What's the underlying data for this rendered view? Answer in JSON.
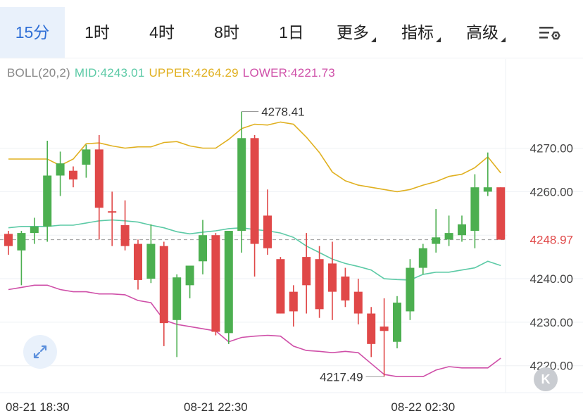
{
  "tabs": [
    {
      "label": "15分",
      "active": true,
      "dropdown": false
    },
    {
      "label": "1时",
      "active": false,
      "dropdown": false
    },
    {
      "label": "4时",
      "active": false,
      "dropdown": false
    },
    {
      "label": "8时",
      "active": false,
      "dropdown": false
    },
    {
      "label": "1日",
      "active": false,
      "dropdown": false
    },
    {
      "label": "更多",
      "active": false,
      "dropdown": true
    },
    {
      "label": "指标",
      "active": false,
      "dropdown": true
    },
    {
      "label": "高级",
      "active": false,
      "dropdown": true
    }
  ],
  "settings_icon": "chart-settings-icon",
  "indicator": {
    "name": "BOLL(20,2)",
    "mid": "MID:4243.01",
    "upper": "UPPER:4264.29",
    "lower": "LOWER:4221.73",
    "colors": {
      "name": "#888888",
      "mid": "#5ccaa6",
      "upper": "#e0b020",
      "lower": "#cf4fa8"
    }
  },
  "chart_data": {
    "type": "candlestick",
    "indicator": "BOLL(20,2)",
    "y_ticks": [
      4220,
      4230,
      4240,
      4250,
      4260,
      4270
    ],
    "y_tick_labels": [
      "4220.00",
      "4230.00",
      "4240.00",
      "4250.00",
      "4260.00",
      "4270.00"
    ],
    "ylim": [
      4214.3,
      4281.4
    ],
    "x_tick_labels": [
      {
        "index": 0,
        "label": "08-21 18:30"
      },
      {
        "index": 16,
        "label": "08-21 22:30"
      },
      {
        "index": 32,
        "label": "08-22 02:30"
      }
    ],
    "current_price": {
      "value": 4248.97,
      "label": "4248.97"
    },
    "max_annotation": {
      "index": 18,
      "value": 4278.41,
      "label": "4278.41"
    },
    "min_annotation": {
      "index": 29,
      "value": 4217.49,
      "label": "4217.49"
    },
    "colors": {
      "up": "#4caf50",
      "down": "#e04848",
      "mid": "#5ccaa6",
      "upper": "#e0b020",
      "lower": "#cf4fa8",
      "price_line": "#999999"
    },
    "candles": [
      {
        "o": 4250.3,
        "h": 4251.0,
        "l": 4245.5,
        "c": 4247.5
      },
      {
        "o": 4246.5,
        "h": 4251.0,
        "l": 4238.5,
        "c": 4250.5
      },
      {
        "o": 4250.5,
        "h": 4254.0,
        "l": 4248.0,
        "c": 4252.0
      },
      {
        "o": 4252.0,
        "h": 4271.7,
        "l": 4248.5,
        "c": 4263.7
      },
      {
        "o": 4263.7,
        "h": 4269.2,
        "l": 4259.0,
        "c": 4266.5
      },
      {
        "o": 4264.8,
        "h": 4265.8,
        "l": 4261.0,
        "c": 4262.8
      },
      {
        "o": 4266.2,
        "h": 4270.8,
        "l": 4263.2,
        "c": 4269.7
      },
      {
        "o": 4269.7,
        "h": 4273.0,
        "l": 4249.0,
        "c": 4256.3
      },
      {
        "o": 4255.5,
        "h": 4260.0,
        "l": 4247.5,
        "c": 4255.3
      },
      {
        "o": 4252.3,
        "h": 4258.0,
        "l": 4246.5,
        "c": 4247.5
      },
      {
        "o": 4248.0,
        "h": 4249.0,
        "l": 4237.5,
        "c": 4239.7
      },
      {
        "o": 4240.0,
        "h": 4252.5,
        "l": 4239.0,
        "c": 4248.0
      },
      {
        "o": 4247.5,
        "h": 4248.5,
        "l": 4224.5,
        "c": 4229.8
      },
      {
        "o": 4230.5,
        "h": 4241.0,
        "l": 4222.0,
        "c": 4240.3
      },
      {
        "o": 4238.5,
        "h": 4243.0,
        "l": 4235.5,
        "c": 4243.0
      },
      {
        "o": 4244.0,
        "h": 4253.5,
        "l": 4241.0,
        "c": 4250.0
      },
      {
        "o": 4250.0,
        "h": 4250.5,
        "l": 4227.0,
        "c": 4227.8
      },
      {
        "o": 4227.5,
        "h": 4250.5,
        "l": 4225.0,
        "c": 4251.0
      },
      {
        "o": 4251.0,
        "h": 4278.4,
        "l": 4246.0,
        "c": 4272.3
      },
      {
        "o": 4272.3,
        "h": 4273.0,
        "l": 4240.5,
        "c": 4248.0
      },
      {
        "o": 4254.5,
        "h": 4260.5,
        "l": 4245.5,
        "c": 4247.0
      },
      {
        "o": 4244.5,
        "h": 4245.0,
        "l": 4232.0,
        "c": 4232.0
      },
      {
        "o": 4237.0,
        "h": 4238.5,
        "l": 4229.0,
        "c": 4232.5
      },
      {
        "o": 4245.0,
        "h": 4250.5,
        "l": 4232.0,
        "c": 4238.5
      },
      {
        "o": 4244.5,
        "h": 4247.5,
        "l": 4231.0,
        "c": 4233.0
      },
      {
        "o": 4243.5,
        "h": 4248.5,
        "l": 4230.5,
        "c": 4237.0
      },
      {
        "o": 4240.5,
        "h": 4242.5,
        "l": 4233.5,
        "c": 4235.0
      },
      {
        "o": 4237.0,
        "h": 4240.0,
        "l": 4229.5,
        "c": 4232.0
      },
      {
        "o": 4232.0,
        "h": 4233.5,
        "l": 4222.0,
        "c": 4225.0
      },
      {
        "o": 4229.0,
        "h": 4235.5,
        "l": 4217.5,
        "c": 4228.0
      },
      {
        "o": 4225.5,
        "h": 4236.0,
        "l": 4224.0,
        "c": 4234.5
      },
      {
        "o": 4232.5,
        "h": 4244.5,
        "l": 4230.5,
        "c": 4242.5
      },
      {
        "o": 4242.5,
        "h": 4248.0,
        "l": 4241.0,
        "c": 4247.0
      },
      {
        "o": 4248.0,
        "h": 4256.0,
        "l": 4246.0,
        "c": 4249.5
      },
      {
        "o": 4249.0,
        "h": 4254.5,
        "l": 4247.5,
        "c": 4250.5
      },
      {
        "o": 4250.0,
        "h": 4254.5,
        "l": 4248.5,
        "c": 4252.5
      },
      {
        "o": 4251.0,
        "h": 4264.0,
        "l": 4247.0,
        "c": 4261.0
      },
      {
        "o": 4260.0,
        "h": 4269.0,
        "l": 4259.0,
        "c": 4261.0
      },
      {
        "o": 4261.0,
        "h": 4261.0,
        "l": 4249.0,
        "c": 4248.97
      }
    ],
    "boll_upper": [
      4267.5,
      4267.5,
      4267.5,
      4267.5,
      4266.0,
      4267.5,
      4271.0,
      4271.2,
      4270.5,
      4270.0,
      4270.3,
      4270.3,
      4271.3,
      4271.5,
      4270.5,
      4270.0,
      4270.0,
      4272.0,
      4274.5,
      4275.5,
      4275.3,
      4276.0,
      4275.5,
      4272.5,
      4269.0,
      4264.5,
      4262.5,
      4261.5,
      4261.0,
      4260.5,
      4260.0,
      4260.5,
      4261.5,
      4262.3,
      4263.5,
      4264.0,
      4265.5,
      4268.0,
      4264.29
    ],
    "boll_mid": [
      4251.7,
      4252.0,
      4252.0,
      4252.0,
      4252.3,
      4252.3,
      4252.8,
      4253.3,
      4253.5,
      4253.3,
      4253.0,
      4252.3,
      4251.7,
      4250.8,
      4250.3,
      4250.7,
      4251.0,
      4251.5,
      4251.7,
      4251.3,
      4251.0,
      4250.5,
      4249.5,
      4247.5,
      4246.0,
      4244.5,
      4243.5,
      4242.8,
      4242.0,
      4240.0,
      4239.8,
      4239.7,
      4241.0,
      4241.5,
      4241.5,
      4242.0,
      4242.5,
      4244.0,
      4243.01
    ],
    "boll_lower": [
      4237.5,
      4238.0,
      4238.5,
      4238.5,
      4237.5,
      4237.0,
      4237.0,
      4236.5,
      4236.5,
      4236.3,
      4235.0,
      4234.5,
      4230.5,
      4229.5,
      4229.0,
      4228.5,
      4228.0,
      4225.5,
      4226.5,
      4226.8,
      4227.0,
      4226.8,
      4224.5,
      4223.5,
      4223.3,
      4223.0,
      4223.3,
      4223.0,
      4220.5,
      4218.0,
      4217.5,
      4217.5,
      4217.5,
      4219.0,
      4219.8,
      4219.5,
      4219.5,
      4219.5,
      4221.73
    ]
  }
}
